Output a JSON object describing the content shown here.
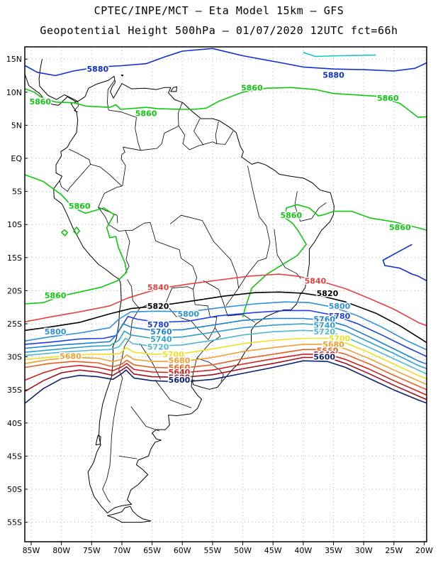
{
  "title_line1": "CPTEC/INPE/MCT – Eta Model 15km – GFS",
  "title_line2": "Geopotential Height 500hPa – 01/07/2020 12UTC fct=66h",
  "lat_labels": [
    "15N",
    "10N",
    "5N",
    "EQ",
    "5S",
    "10S",
    "15S",
    "20S",
    "25S",
    "30S",
    "35S",
    "40S",
    "45S",
    "50S",
    "55S"
  ],
  "lon_labels": [
    "85W",
    "80W",
    "75W",
    "70W",
    "65W",
    "60W",
    "55W",
    "50W",
    "45W",
    "40W",
    "35W",
    "30W",
    "25W",
    "20W"
  ],
  "contours": [
    {
      "value": 5880,
      "color": "#1030d0",
      "labels": [
        {
          "text": "5880",
          "lon": -74,
          "lat": 13.5
        },
        {
          "text": "5880",
          "lon": -35,
          "lat": 12.6
        }
      ]
    },
    {
      "value": 5860,
      "color": "#10c810",
      "labels": [
        {
          "text": "5860",
          "lon": -83.5,
          "lat": 8.6
        },
        {
          "text": "5860",
          "lon": -48.5,
          "lat": 10.7
        },
        {
          "text": "5860",
          "lon": -66,
          "lat": 6.8
        },
        {
          "text": "5860",
          "lon": -26,
          "lat": 9.1
        },
        {
          "text": "5860",
          "lon": -77,
          "lat": -7.2
        },
        {
          "text": "5860",
          "lon": -42,
          "lat": -8.6
        },
        {
          "text": "5860",
          "lon": -24,
          "lat": -10.4
        },
        {
          "text": "5860",
          "lon": -81,
          "lat": -20.7
        }
      ]
    },
    {
      "value": 5840,
      "color": "#e84040",
      "labels": [
        {
          "text": "5840",
          "lon": -64,
          "lat": -19.5
        },
        {
          "text": "5840",
          "lon": -38,
          "lat": -18.5
        }
      ]
    },
    {
      "value": 5820,
      "color": "#000000",
      "labels": [
        {
          "text": "5820",
          "lon": -64,
          "lat": -22.3
        },
        {
          "text": "5820",
          "lon": -36,
          "lat": -20.4
        }
      ]
    },
    {
      "value": 5800,
      "color": "#3090d8",
      "labels": [
        {
          "text": "5800",
          "lon": -59,
          "lat": -23.5
        },
        {
          "text": "5800",
          "lon": -81,
          "lat": -26.2
        },
        {
          "text": "5800",
          "lon": -34,
          "lat": -22.3
        }
      ]
    },
    {
      "value": 5780,
      "color": "#2040e0",
      "labels": [
        {
          "text": "5780",
          "lon": -64,
          "lat": -25.1
        },
        {
          "text": "5780",
          "lon": -34,
          "lat": -23.8
        }
      ]
    },
    {
      "value": 5760,
      "color": "#2080d0",
      "labels": [
        {
          "text": "5760",
          "lon": -63.5,
          "lat": -26.2
        },
        {
          "text": "5760",
          "lon": -36.5,
          "lat": -24.3
        }
      ]
    },
    {
      "value": 5740,
      "color": "#30a0c8",
      "labels": [
        {
          "text": "5740",
          "lon": -63.5,
          "lat": -27.3
        },
        {
          "text": "5740",
          "lon": -36.5,
          "lat": -25.2
        }
      ]
    },
    {
      "value": 5720,
      "color": "#50b8d0",
      "labels": [
        {
          "text": "5720",
          "lon": -64,
          "lat": -28.5
        },
        {
          "text": "5720",
          "lon": -36.5,
          "lat": -26.2
        }
      ]
    },
    {
      "value": 5700,
      "color": "#f0e020",
      "labels": [
        {
          "text": "5700",
          "lon": -61.5,
          "lat": -29.6
        },
        {
          "text": "5700",
          "lon": -34,
          "lat": -27.2
        }
      ]
    },
    {
      "value": 5680,
      "color": "#f0a030",
      "labels": [
        {
          "text": "5680",
          "lon": -78.5,
          "lat": -29.9
        },
        {
          "text": "5680",
          "lon": -60.5,
          "lat": -30.5
        },
        {
          "text": "5680",
          "lon": -35,
          "lat": -28.1
        }
      ]
    },
    {
      "value": 5660,
      "color": "#e86020",
      "labels": [
        {
          "text": "5660",
          "lon": -60.5,
          "lat": -31.6
        },
        {
          "text": "5660",
          "lon": -36,
          "lat": -29
        }
      ]
    },
    {
      "value": 5640,
      "color": "#d02020",
      "labels": [
        {
          "text": "5640",
          "lon": -60.5,
          "lat": -32.3
        },
        {
          "text": "5640",
          "lon": -36.5,
          "lat": -29.6
        }
      ]
    },
    {
      "value": 5620,
      "color": "#a01020",
      "labels": [
        {
          "text": "5620",
          "lon": -60.5,
          "lat": -33.1
        }
      ]
    },
    {
      "value": 5600,
      "color": "#102070",
      "labels": [
        {
          "text": "5600",
          "lon": -60.5,
          "lat": -33.5
        },
        {
          "text": "5600",
          "lon": -36.5,
          "lat": -30
        }
      ]
    }
  ]
}
